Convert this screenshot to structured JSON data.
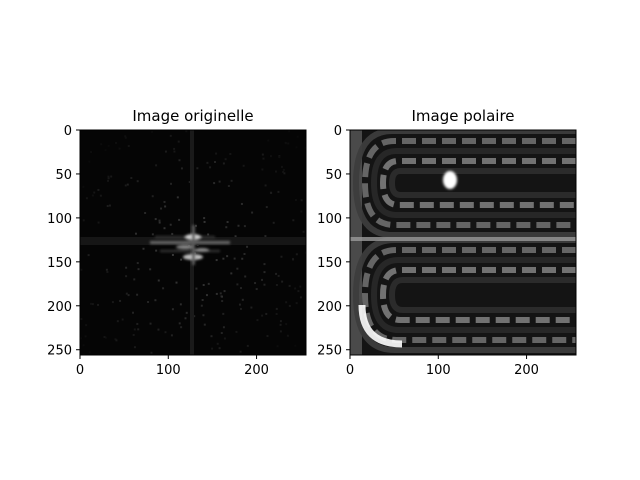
{
  "chart_data": [
    {
      "type": "heatmap",
      "title": "Image originelle",
      "xlabel": "",
      "ylabel": "",
      "xlim": [
        0,
        256
      ],
      "ylim": [
        256,
        0
      ],
      "xticks": [
        0,
        100,
        200
      ],
      "yticks": [
        0,
        50,
        100,
        150,
        200,
        250
      ],
      "colormap": "gray",
      "grid": false,
      "image_size": [
        256,
        256
      ],
      "content": "2D Fourier magnitude spectrum: dark background with bright cross-shaped features concentrated near the centre (approx. x 90-170, y 120-150), brightest spots near (128,122) and (128,146)."
    },
    {
      "type": "heatmap",
      "title": "Image polaire",
      "xlabel": "",
      "ylabel": "",
      "xlim": [
        0,
        256
      ],
      "ylim": [
        256,
        0
      ],
      "xticks": [
        0,
        100,
        200
      ],
      "yticks": [
        0,
        50,
        100,
        150,
        200,
        250
      ],
      "colormap": "gray",
      "grid": false,
      "image_size": [
        256,
        256
      ],
      "content": "Polar-transformed image: two lobes (rows 0-125 and 130-256) of nested C-shaped arcs opening to the right, bright bright-band near row 127, brightest spots near (115,55) and (35,215)."
    }
  ]
}
